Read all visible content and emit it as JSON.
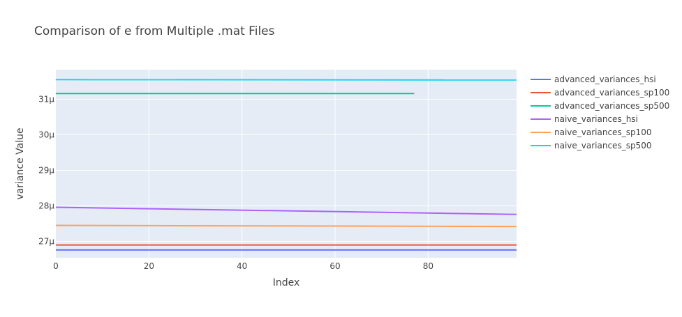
{
  "chart_data": {
    "type": "line",
    "title": "Comparison of e from Multiple .mat Files",
    "xlabel": "Index",
    "ylabel": "variance Value",
    "xlim": [
      0,
      99
    ],
    "ylim": [
      26.54,
      31.83
    ],
    "y_unit_suffix": "μ",
    "x_ticks": [
      0,
      20,
      40,
      60,
      80
    ],
    "y_ticks": [
      27,
      28,
      29,
      30,
      31
    ],
    "grid": true,
    "legend_position": "right",
    "series": [
      {
        "name": "advanced_variances_hsi",
        "color": "#636efa",
        "x": [
          0,
          99
        ],
        "y": [
          26.76,
          26.76
        ]
      },
      {
        "name": "advanced_variances_sp100",
        "color": "#ef553b",
        "x": [
          0,
          99
        ],
        "y": [
          26.9,
          26.9
        ]
      },
      {
        "name": "advanced_variances_sp500",
        "color": "#00cc96",
        "x": [
          0,
          77
        ],
        "y": [
          31.16,
          31.16
        ]
      },
      {
        "name": "naive_variances_hsi",
        "color": "#ab63fa",
        "x": [
          0,
          99
        ],
        "y": [
          27.96,
          27.76
        ]
      },
      {
        "name": "naive_variances_sp100",
        "color": "#ffa15a",
        "x": [
          0,
          99
        ],
        "y": [
          27.45,
          27.42
        ]
      },
      {
        "name": "naive_variances_sp500",
        "color": "#19d3f3",
        "x": [
          0,
          99
        ],
        "y": [
          31.55,
          31.54
        ]
      }
    ]
  }
}
